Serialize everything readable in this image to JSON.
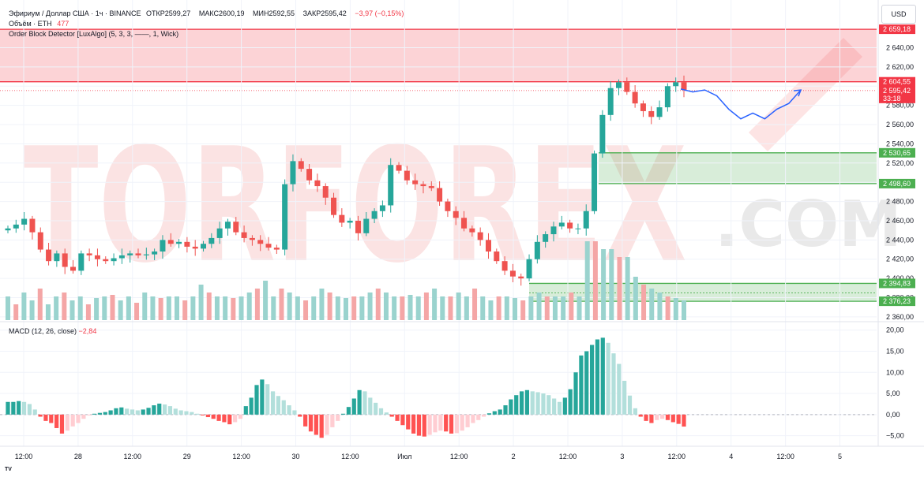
{
  "header": {
    "symbol": "Эфириум / Доллар США · 1ч · BINANCE",
    "open_label": "ОТКР",
    "open": "2599,27",
    "high_label": "МАКС",
    "high": "2600,19",
    "low_label": "МИН",
    "low": "2592,55",
    "close_label": "ЗАКР",
    "close": "2595,42",
    "change": "−3,97 (−0,15%)",
    "volume_label": "Объём · ETH",
    "volume_value": "477",
    "indicator": "Order Block Detector [LuxAlgo] (5, 3, 3, ——, 1, Wick)"
  },
  "currency_button": "USD",
  "macd_header": {
    "label": "MACD (12, 26, close)",
    "value": "−2,84"
  },
  "watermark": {
    "text": "TORFOREX",
    "sub": ".COM"
  },
  "footer_logo": "TV",
  "colors": {
    "up": "#26a69a",
    "down": "#ef5350",
    "vol_up": "#9ad3ce",
    "vol_down": "#f4a6a6",
    "macd_up_strong": "#26a69a",
    "macd_up_weak": "#b2dfdb",
    "macd_down_strong": "#ff5252",
    "macd_down_weak": "#ffcdd2",
    "bear_block": "#f23645",
    "bull_block": "#4caf50",
    "forecast": "#2962ff"
  },
  "chart_data": [
    {
      "type": "candlestick",
      "title": "Эфириум / Доллар США · 1ч · BINANCE",
      "y_axis_ticks": [
        "2 640,00",
        "2 620,00",
        "2 600,00",
        "2 580,00",
        "2 560,00",
        "2 540,00",
        "2 520,00",
        "2 500,00",
        "2 480,00",
        "2 460,00",
        "2 440,00",
        "2 420,00",
        "2 400,00",
        "2 380,00",
        "2 360,00"
      ],
      "ylim": [
        2355,
        2665
      ],
      "x_axis_labels": [
        "12:00",
        "28",
        "12:00",
        "29",
        "12:00",
        "30",
        "12:00",
        "Июл",
        "12:00",
        "2",
        "12:00",
        "3",
        "12:00",
        "4",
        "12:00",
        "5"
      ],
      "close_series": [
        2452,
        2456,
        2462,
        2448,
        2430,
        2418,
        2426,
        2412,
        2408,
        2426,
        2424,
        2420,
        2418,
        2421,
        2424,
        2426,
        2424,
        2425,
        2428,
        2440,
        2436,
        2438,
        2433,
        2431,
        2436,
        2442,
        2452,
        2459,
        2448,
        2442,
        2440,
        2436,
        2432,
        2430,
        2498,
        2522,
        2514,
        2502,
        2496,
        2484,
        2466,
        2458,
        2460,
        2447,
        2462,
        2470,
        2476,
        2518,
        2512,
        2502,
        2498,
        2496,
        2494,
        2480,
        2470,
        2463,
        2452,
        2448,
        2440,
        2428,
        2418,
        2408,
        2402,
        2400,
        2420,
        2438,
        2446,
        2454,
        2458,
        2452,
        2452,
        2470,
        2530,
        2570,
        2598,
        2604,
        2594,
        2582,
        2574,
        2568,
        2578,
        2600,
        2604,
        2596
      ],
      "last_price": "2 595,42",
      "price_labels": [
        "2 659,18",
        "2 604,55",
        "2 595,42",
        "33:18",
        "2 530,65",
        "2 498,60",
        "2 394,83",
        "2 376,23"
      ],
      "order_blocks": [
        {
          "kind": "bearish",
          "top": 2659.18,
          "bottom": 2604.55
        },
        {
          "kind": "bullish",
          "top": 2530.65,
          "bottom": 2498.6
        },
        {
          "kind": "bullish",
          "top": 2394.83,
          "bottom": 2376.23
        }
      ],
      "forecast_path": [
        2597,
        2594,
        2596,
        2590,
        2576,
        2566,
        2572,
        2566,
        2576,
        2582,
        2596
      ]
    },
    {
      "type": "bar",
      "title": "MACD (12, 26, close)",
      "y_axis_ticks": [
        "20,00",
        "15,00",
        "10,00",
        "5,00",
        "0,00",
        "−5,00"
      ],
      "ylim": [
        -7.5,
        22
      ],
      "value": -2.84,
      "values": [
        3,
        3,
        3.2,
        3,
        2.5,
        1.2,
        -0.5,
        -1.5,
        -2,
        -3.2,
        -4.5,
        -3.8,
        -2.8,
        -2,
        -1,
        -0.2,
        0.2,
        0.4,
        0.6,
        1,
        1.5,
        1.7,
        1.4,
        1.2,
        1,
        1.2,
        1.6,
        2.2,
        2.6,
        2.4,
        2,
        1.4,
        1,
        0.8,
        0.6,
        0.2,
        -0.2,
        -0.6,
        -1,
        -1.5,
        -1.8,
        -2.3,
        -1.8,
        -1,
        2,
        4,
        7,
        8.3,
        7.2,
        5.5,
        4.4,
        3.4,
        2.2,
        1,
        -0.5,
        -2.8,
        -4,
        -4.8,
        -5.5,
        -4.8,
        -3,
        -1.5,
        0.2,
        1.8,
        3.8,
        5.8,
        5.5,
        4,
        2.8,
        1.5,
        0.5,
        -0.5,
        -1.5,
        -2.5,
        -3.5,
        -4.5,
        -5,
        -5.2,
        -4.8,
        -4.2,
        -3.8,
        -4,
        -4.5,
        -4.4,
        -3.8,
        -3,
        -2,
        -1.3,
        -0.5,
        0.3,
        0.8,
        1.2,
        2.2,
        3.6,
        4.6,
        5.5,
        5.8,
        5.5,
        5.3,
        5,
        4.6,
        3.8,
        3,
        4,
        6,
        10,
        14,
        15,
        16.5,
        17.8,
        18.2,
        17,
        14.5,
        12,
        8,
        4.5,
        1.5,
        -0.5,
        -1.5,
        -2,
        -1.3,
        -1,
        -1.3,
        -1.8,
        -2.2,
        -2.84
      ]
    },
    {
      "type": "bar",
      "title": "Объём · ETH",
      "value": 477,
      "values": [
        0.3,
        0.2,
        0.35,
        0.25,
        0.4,
        0.2,
        0.3,
        0.35,
        0.25,
        0.3,
        0.2,
        0.28,
        0.3,
        0.32,
        0.25,
        0.3,
        0.22,
        0.35,
        0.3,
        0.28,
        0.3,
        0.3,
        0.25,
        0.3,
        0.45,
        0.35,
        0.3,
        0.3,
        0.28,
        0.3,
        0.35,
        0.4,
        0.5,
        0.3,
        0.4,
        0.35,
        0.3,
        0.25,
        0.3,
        0.4,
        0.35,
        0.3,
        0.28,
        0.3,
        0.3,
        0.35,
        0.4,
        0.35,
        0.3,
        0.3,
        0.32,
        0.3,
        0.35,
        0.4,
        0.3,
        0.3,
        0.35,
        0.3,
        0.4,
        0.3,
        0.25,
        0.3,
        0.3,
        0.28,
        0.25,
        0.3,
        0.35,
        0.3,
        0.3,
        0.3,
        0.35,
        0.3,
        1.0,
        1.0,
        0.9,
        0.9,
        0.8,
        0.8,
        0.55,
        0.45,
        0.4,
        0.35,
        0.3,
        0.28,
        0.25
      ]
    }
  ]
}
